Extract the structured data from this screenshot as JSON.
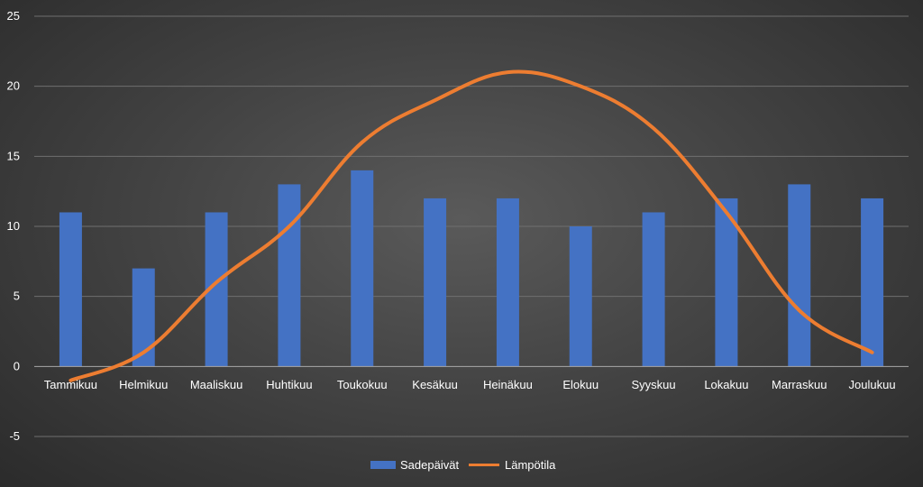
{
  "chart_data": {
    "type": "bar",
    "categories": [
      "Tammikuu",
      "Helmikuu",
      "Maaliskuu",
      "Huhtikuu",
      "Toukokuu",
      "Kesäkuu",
      "Heinäkuu",
      "Elokuu",
      "Syyskuu",
      "Lokakuu",
      "Marraskuu",
      "Joulukuu"
    ],
    "series": [
      {
        "name": "Sadepäivät",
        "type": "bar",
        "color": "#4472C4",
        "values": [
          11,
          7,
          11,
          13,
          14,
          12,
          12,
          10,
          11,
          12,
          13,
          12
        ]
      },
      {
        "name": "Lämpötila",
        "type": "line",
        "color": "#ED7D31",
        "values": [
          -1,
          1,
          6,
          10,
          16,
          19,
          21,
          20,
          17,
          11,
          4,
          1
        ]
      }
    ],
    "ylim": [
      -5,
      25
    ],
    "yticks": [
      -5,
      0,
      5,
      10,
      15,
      20,
      25
    ],
    "grid": true,
    "legend": "bottom-center",
    "title": "",
    "xlabel": "",
    "ylabel": ""
  }
}
